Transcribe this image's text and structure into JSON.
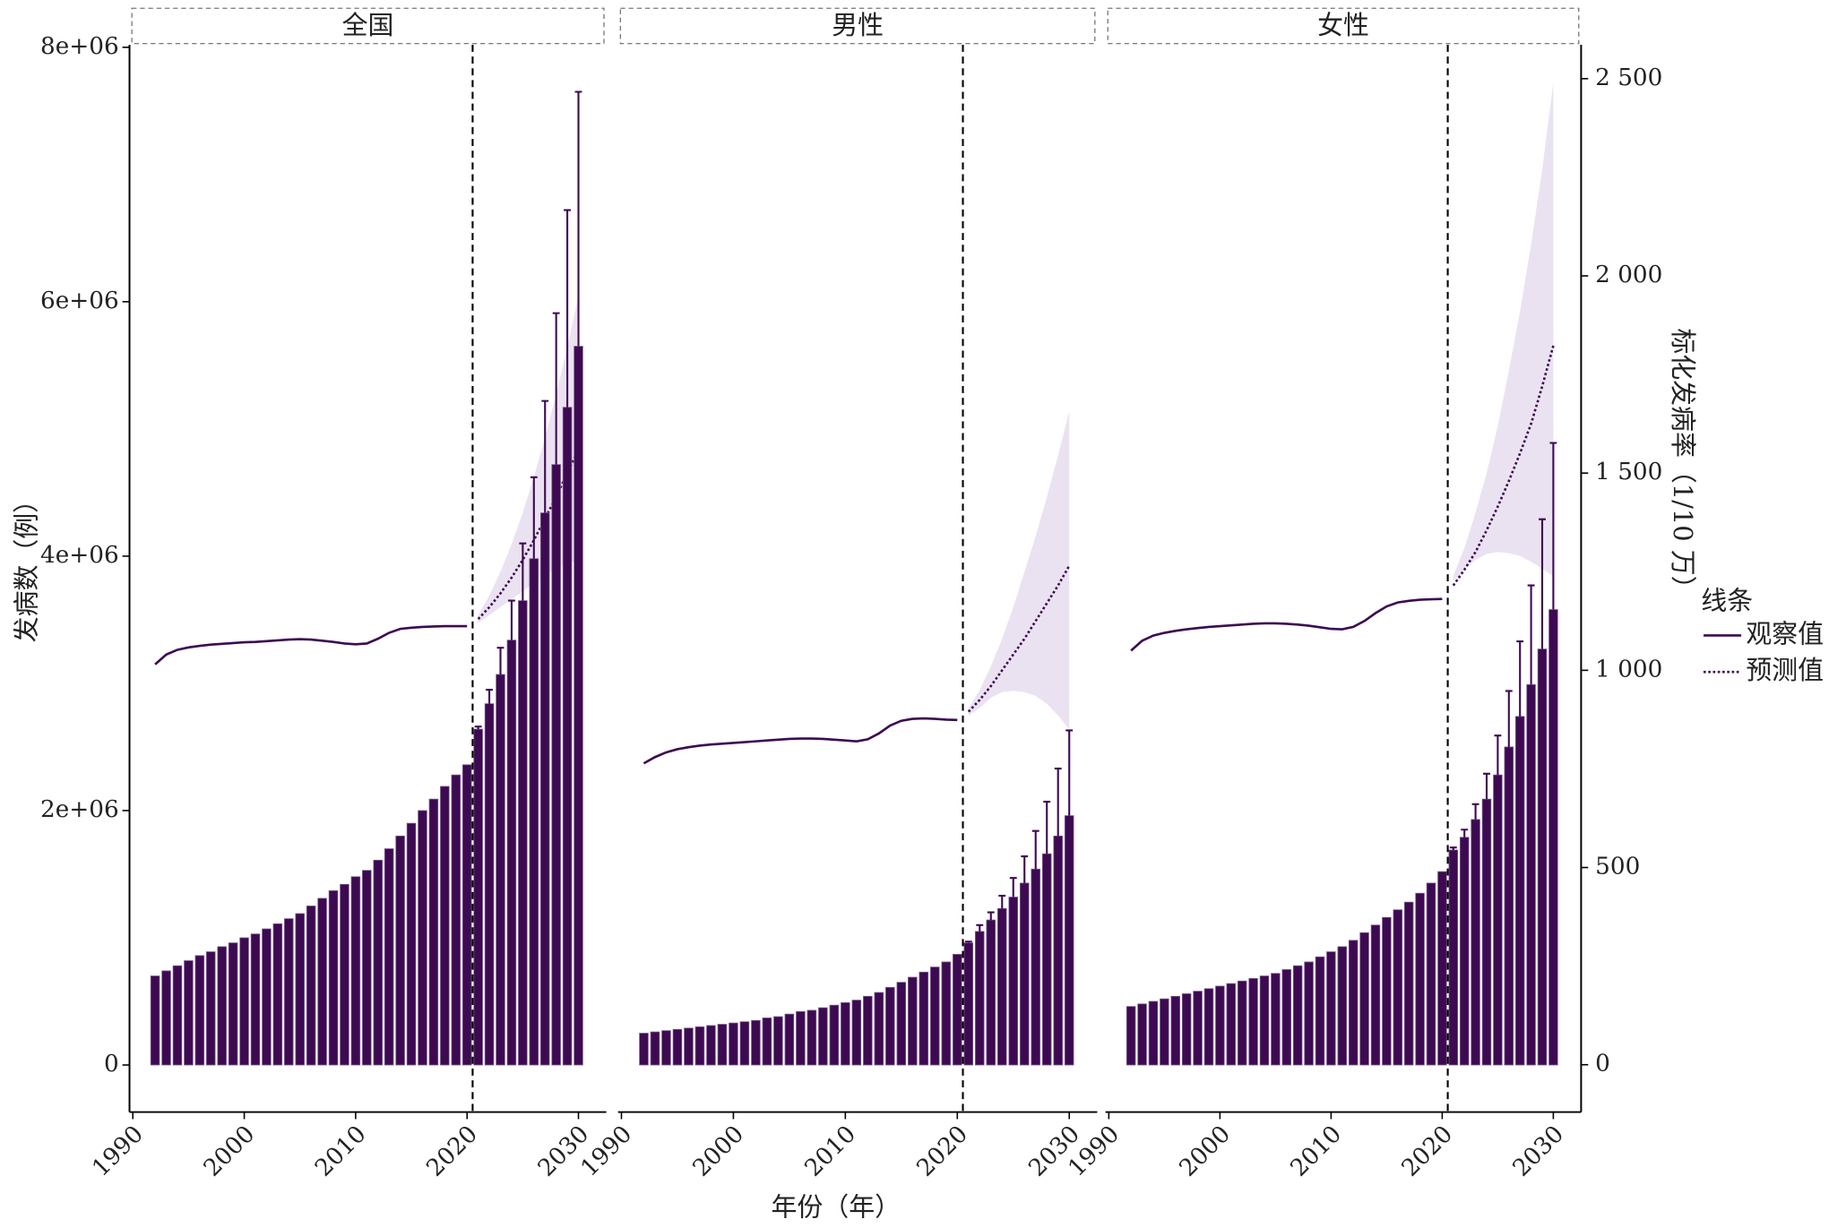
{
  "chart_data": {
    "type": "bar",
    "xlabel": "年份（年）",
    "ylabel": "发病数（例）",
    "y2label": "标化发病率（1/10 万）",
    "legend_title": "线条",
    "legend": [
      {
        "name": "观察值",
        "style": "solid"
      },
      {
        "name": "预测值",
        "style": "dotted"
      }
    ],
    "bar_color": "#3d0a52",
    "line_color": "#3d0a52",
    "band_color": "#ebe2f1",
    "xlim": [
      1989.7,
      2032.5
    ],
    "xticks": [
      1990,
      2000,
      2010,
      2020,
      2030
    ],
    "ylim": [
      -370000,
      8020000
    ],
    "yticks": [
      0,
      {
        "value": 2000000,
        "label": "2e+06"
      },
      {
        "value": 4000000,
        "label": "4e+06"
      },
      {
        "value": 6000000,
        "label": "6e+06"
      },
      {
        "value": 8000000,
        "label": "8e+06"
      }
    ],
    "y2lim": [
      -120,
      2586
    ],
    "y2ticks": [
      0,
      500,
      {
        "value": 1000,
        "label": "1 000"
      },
      {
        "value": 1500,
        "label": "1 500"
      },
      {
        "value": 2000,
        "label": "2 000"
      },
      {
        "value": 2500,
        "label": "2 500"
      }
    ],
    "vline": 2020.5,
    "x": [
      1992,
      1993,
      1994,
      1995,
      1996,
      1997,
      1998,
      1999,
      2000,
      2001,
      2002,
      2003,
      2004,
      2005,
      2006,
      2007,
      2008,
      2009,
      2010,
      2011,
      2012,
      2013,
      2014,
      2015,
      2016,
      2017,
      2018,
      2019,
      2020,
      2021,
      2022,
      2023,
      2024,
      2025,
      2026,
      2027,
      2028,
      2029,
      2030
    ],
    "x_observed": [
      1992,
      1993,
      1994,
      1995,
      1996,
      1997,
      1998,
      1999,
      2000,
      2001,
      2002,
      2003,
      2004,
      2005,
      2006,
      2007,
      2008,
      2009,
      2010,
      2011,
      2012,
      2013,
      2014,
      2015,
      2016,
      2017,
      2018,
      2019,
      2020
    ],
    "x_forecast": [
      2021,
      2022,
      2023,
      2024,
      2025,
      2026,
      2027,
      2028,
      2029,
      2030
    ],
    "panels": [
      {
        "title": "全国",
        "bars": [
          700000,
          740000,
          780000,
          820000,
          860000,
          890000,
          930000,
          960000,
          1000000,
          1030000,
          1070000,
          1110000,
          1150000,
          1190000,
          1250000,
          1310000,
          1370000,
          1420000,
          1480000,
          1530000,
          1610000,
          1700000,
          1800000,
          1900000,
          2000000,
          2090000,
          2190000,
          2280000,
          2360000,
          2640000,
          2840000,
          3070000,
          3340000,
          3650000,
          3980000,
          4340000,
          4720000,
          5170000,
          5650000
        ],
        "bar_error_upper": [
          2660000,
          2950000,
          3280000,
          3650000,
          4100000,
          4620000,
          5220000,
          5910000,
          6720000,
          7650000
        ],
        "observed": [
          1015,
          1040,
          1052,
          1058,
          1062,
          1065,
          1067,
          1069,
          1071,
          1072,
          1074,
          1076,
          1078,
          1079,
          1078,
          1075,
          1072,
          1068,
          1066,
          1068,
          1080,
          1095,
          1105,
          1108,
          1110,
          1111,
          1112,
          1112,
          1112
        ],
        "predicted": [
          1130,
          1160,
          1195,
          1235,
          1280,
          1330,
          1385,
          1440,
          1500,
          1560
        ],
        "band_lower": [
          1120,
          1140,
          1160,
          1180,
          1200,
          1220,
          1240,
          1260,
          1270,
          1280
        ],
        "band_upper": [
          1140,
          1190,
          1250,
          1320,
          1400,
          1490,
          1590,
          1700,
          1820,
          1950
        ]
      },
      {
        "title": "男性",
        "bars": [
          250000,
          260000,
          270000,
          280000,
          290000,
          300000,
          310000,
          320000,
          330000,
          340000,
          350000,
          370000,
          380000,
          400000,
          420000,
          430000,
          450000,
          470000,
          490000,
          510000,
          540000,
          570000,
          610000,
          650000,
          690000,
          730000,
          770000,
          810000,
          870000,
          960000,
          1050000,
          1140000,
          1230000,
          1320000,
          1430000,
          1540000,
          1660000,
          1800000,
          1960000
        ],
        "bar_error_upper": [
          970000,
          1100000,
          1200000,
          1330000,
          1470000,
          1640000,
          1840000,
          2070000,
          2330000,
          2630000
        ],
        "observed": [
          764,
          780,
          792,
          800,
          805,
          809,
          812,
          814,
          816,
          818,
          820,
          822,
          824,
          826,
          827,
          827,
          826,
          824,
          822,
          820,
          825,
          840,
          860,
          872,
          877,
          878,
          877,
          875,
          874
        ],
        "predicted": [
          895,
          925,
          960,
          1000,
          1040,
          1080,
          1125,
          1170,
          1215,
          1265
        ],
        "band_lower": [
          885,
          905,
          930,
          945,
          948,
          945,
          935,
          915,
          885,
          850
        ],
        "band_upper": [
          905,
          950,
          1010,
          1080,
          1160,
          1250,
          1340,
          1440,
          1545,
          1656
        ]
      },
      {
        "title": "女性",
        "bars": [
          460000,
          480000,
          500000,
          520000,
          540000,
          560000,
          580000,
          600000,
          620000,
          640000,
          660000,
          680000,
          700000,
          720000,
          750000,
          780000,
          810000,
          850000,
          890000,
          930000,
          980000,
          1040000,
          1100000,
          1160000,
          1220000,
          1280000,
          1350000,
          1430000,
          1520000,
          1690000,
          1790000,
          1930000,
          2090000,
          2280000,
          2500000,
          2740000,
          2990000,
          3270000,
          3580000
        ],
        "bar_error_upper": [
          1710000,
          1850000,
          2050000,
          2290000,
          2590000,
          2940000,
          3330000,
          3770000,
          4290000,
          4890000
        ],
        "observed": [
          1050,
          1075,
          1088,
          1095,
          1100,
          1104,
          1107,
          1110,
          1112,
          1114,
          1116,
          1118,
          1119,
          1119,
          1118,
          1116,
          1113,
          1109,
          1105,
          1104,
          1110,
          1125,
          1145,
          1162,
          1172,
          1176,
          1179,
          1180,
          1181
        ],
        "predicted": [
          1215,
          1255,
          1300,
          1355,
          1415,
          1480,
          1550,
          1625,
          1720,
          1823
        ],
        "band_lower": [
          1225,
          1255,
          1280,
          1295,
          1300,
          1297,
          1290,
          1275,
          1258,
          1238
        ],
        "band_upper": [
          1240,
          1310,
          1400,
          1500,
          1620,
          1760,
          1910,
          2080,
          2270,
          2490
        ]
      }
    ]
  }
}
